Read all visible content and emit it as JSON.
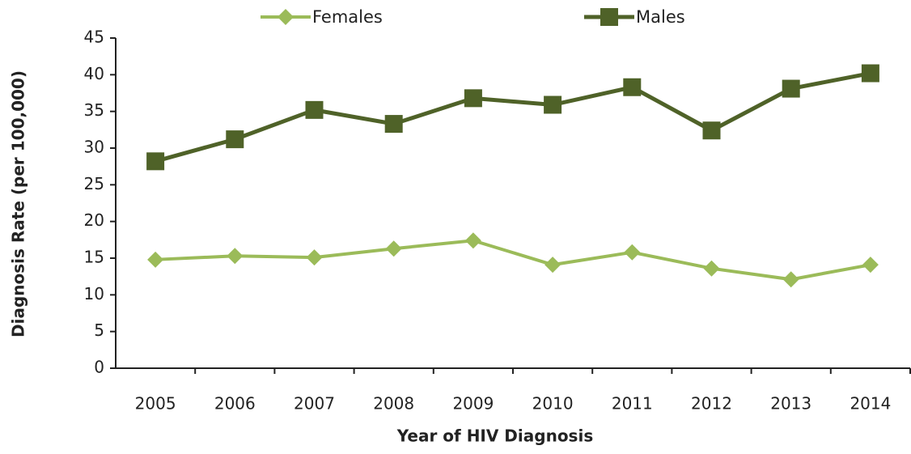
{
  "chart_data": {
    "type": "line",
    "x_label": "Year of HIV Diagnosis",
    "y_label": "Diagnosis Rate (per 100,000)",
    "categories": [
      "2005",
      "2006",
      "2007",
      "2008",
      "2009",
      "2010",
      "2011",
      "2012",
      "2013",
      "2014"
    ],
    "series": [
      {
        "name": "Females",
        "color": "#9bbb59",
        "marker": "diamond",
        "values": [
          14.8,
          15.3,
          15.1,
          16.3,
          17.4,
          14.1,
          15.8,
          13.6,
          12.1,
          14.1
        ]
      },
      {
        "name": "Males",
        "color": "#4f6228",
        "marker": "square",
        "values": [
          28.2,
          31.2,
          35.2,
          33.3,
          36.8,
          35.9,
          38.3,
          32.4,
          38.1,
          40.2
        ]
      }
    ],
    "ylim": [
      0,
      45
    ],
    "yticks": [
      0,
      5,
      10,
      15,
      20,
      25,
      30,
      35,
      40,
      45
    ],
    "grid": false,
    "legend": "top"
  }
}
